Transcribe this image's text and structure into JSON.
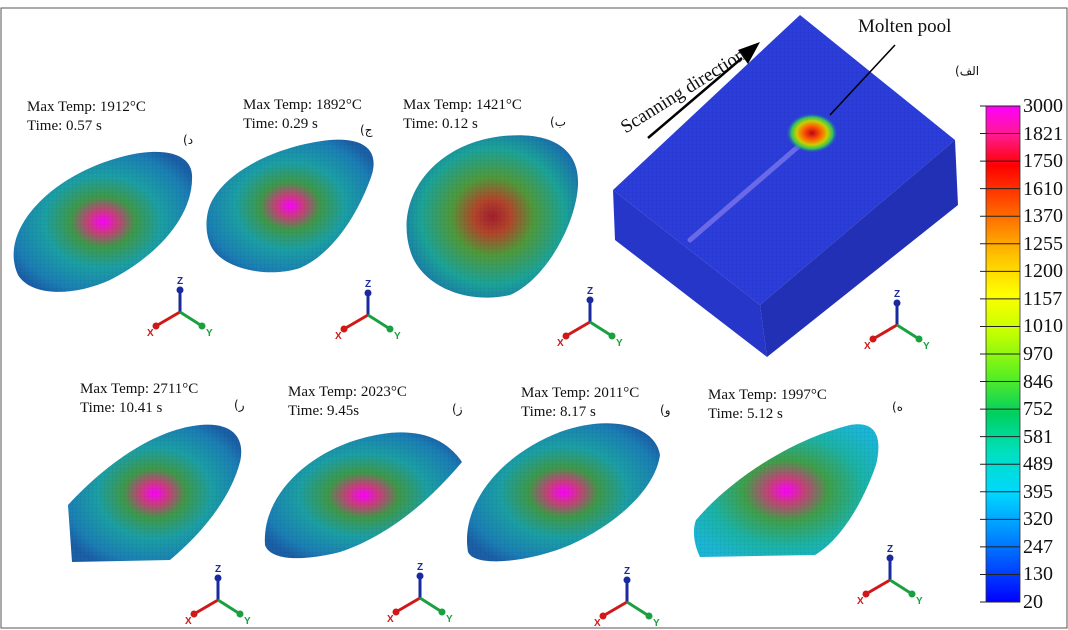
{
  "figure": {
    "panels": [
      {
        "id": "d",
        "letter": "(د",
        "max_temp": "Max Temp: 1912°C",
        "time": "Time: 0.57 s"
      },
      {
        "id": "j",
        "letter": "(ج",
        "max_temp": "Max Temp: 1892°C",
        "time": "Time: 0.29 s"
      },
      {
        "id": "b",
        "letter": "(ب",
        "max_temp": "Max Temp: 1421°C",
        "time": "Time: 0.12 s"
      },
      {
        "id": "r",
        "letter": "(ر",
        "max_temp": "Max Temp: 2711°C",
        "time": "Time: 10.41 s"
      },
      {
        "id": "z",
        "letter": "(ز",
        "max_temp": "Max Temp: 2023°C",
        "time": "Time: 9.45s"
      },
      {
        "id": "w",
        "letter": "(و",
        "max_temp": "Max Temp: 2011°C",
        "time": "Time: 8.17 s"
      },
      {
        "id": "h",
        "letter": "(ه",
        "max_temp": "Max Temp: 1997°C",
        "time": "Time: 5.12 s"
      }
    ],
    "overview": {
      "letter": "(الف",
      "scanning_label": "Scanning direction",
      "pool_label": "Molten pool"
    },
    "axis_labels": {
      "z": "Z",
      "x": "X",
      "y": "Y"
    },
    "colorbar": {
      "ticks": [
        "3000",
        "1821",
        "1750",
        "1610",
        "1370",
        "1255",
        "1200",
        "1157",
        "1010",
        "970",
        "846",
        "752",
        "581",
        "489",
        "395",
        "320",
        "247",
        "130",
        "20"
      ],
      "colors": [
        "#ff00ff",
        "#ff1a6e",
        "#ff0000",
        "#ff4d00",
        "#ff8c00",
        "#ffb300",
        "#ffd900",
        "#ffff00",
        "#c8ff00",
        "#7fff00",
        "#33e633",
        "#00cc44",
        "#00d9a0",
        "#00e6e6",
        "#00c8ff",
        "#0099ff",
        "#0066ff",
        "#0033ff",
        "#0000ff"
      ]
    }
  }
}
